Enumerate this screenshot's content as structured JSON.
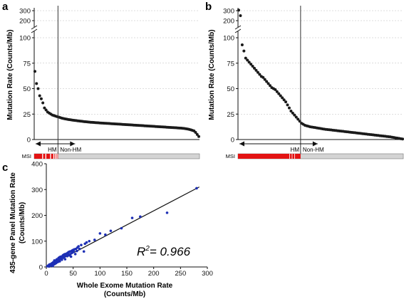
{
  "colors": {
    "dot": "#1a1a1a",
    "scatter_dot": "#1d2fb5",
    "msi_red": "#e31313",
    "msi_grey": "#d4d4d4",
    "grid": "#bbbbbb"
  },
  "panels": {
    "a": {
      "letter": "a"
    },
    "b": {
      "letter": "b"
    },
    "c": {
      "letter": "c"
    }
  },
  "chart_data": [
    {
      "id": "a",
      "type": "scatter",
      "ylabel": "Mutation Rate (Counts/Mb)",
      "y_ticks_lower": [
        "0",
        "25",
        "50",
        "75",
        "100"
      ],
      "y_ticks_upper": [
        "200",
        "300"
      ],
      "ylim_lower": [
        0,
        100
      ],
      "ylim_upper": [
        175,
        325
      ],
      "y_axis_break": true,
      "grid": true,
      "threshold_label_left": "HM",
      "threshold_label_right": "Non-HM",
      "msi_label": "MSI",
      "series": [
        {
          "values": [
            67,
            55,
            50,
            43,
            40,
            36,
            31,
            29,
            27,
            26,
            25,
            24,
            23.5,
            23,
            22.5,
            22,
            21.5,
            21,
            20.6,
            20.3,
            20,
            19.7,
            19.5,
            19.2,
            19,
            18.8,
            18.6,
            18.4,
            18.2,
            18,
            17.8,
            17.6,
            17.5,
            17.3,
            17.1,
            17,
            16.9,
            16.8,
            16.6,
            16.5,
            16.4,
            16.3,
            16.2,
            16.1,
            16,
            15.9,
            15.8,
            15.7,
            15.6,
            15.5,
            15.4,
            15.3,
            15.2,
            15.1,
            15,
            14.9,
            14.8,
            14.7,
            14.6,
            14.5,
            14.4,
            14.3,
            14.2,
            14.1,
            14,
            13.9,
            13.8,
            13.7,
            13.6,
            13.5,
            13.4,
            13.3,
            13.2,
            13.1,
            13,
            12.9,
            12.8,
            12.7,
            12.6,
            12.5,
            12.4,
            12.3,
            12.2,
            12.1,
            12,
            11.9,
            11.8,
            11.7,
            11.6,
            11.5,
            11.4,
            11.3,
            11.2,
            11,
            10.8,
            10.6,
            10.3,
            10,
            9.5,
            9,
            8.5,
            7,
            5,
            3
          ]
        }
      ],
      "hm_count": 15,
      "msi_stripes": [
        0,
        1,
        2,
        3,
        4,
        6,
        8,
        9,
        11
      ]
    },
    {
      "id": "b",
      "type": "scatter",
      "ylabel": "Mutation Rate (Counts/Mb)",
      "y_ticks_lower": [
        "0",
        "25",
        "50",
        "75",
        "100"
      ],
      "y_ticks_upper": [
        "200",
        "300"
      ],
      "ylim_lower": [
        0,
        100
      ],
      "ylim_upper": [
        175,
        325
      ],
      "y_axis_break": true,
      "grid": true,
      "threshold_label_left": "HM",
      "threshold_label_right": "Non-HM",
      "msi_label": "MSI",
      "upper_points": [
        305,
        250
      ],
      "series": [
        {
          "values": [
            93,
            87,
            80,
            78,
            76,
            74,
            72,
            70,
            68,
            66,
            64,
            62,
            61,
            59,
            57,
            55,
            53,
            51,
            50,
            49,
            47,
            45,
            43,
            41,
            39,
            37,
            34,
            31,
            28,
            26,
            24,
            22,
            20,
            18,
            16,
            15,
            14,
            13.5,
            13,
            12.5,
            12.2,
            12,
            11.7,
            11.4,
            11.1,
            10.8,
            10.5,
            10.2,
            10,
            9.8,
            9.6,
            9.4,
            9.2,
            9,
            8.8,
            8.6,
            8.4,
            8.2,
            8,
            7.8,
            7.6,
            7.4,
            7.2,
            7,
            6.8,
            6.6,
            6.4,
            6.2,
            6,
            5.8,
            5.6,
            5.4,
            5.2,
            5,
            4.8,
            4.6,
            4.4,
            4.2,
            4,
            3.8,
            3.6,
            3.4,
            3.2,
            3,
            2.8,
            2.6,
            2.3,
            2,
            1.7,
            1.4,
            1.1,
            0.8,
            0.5
          ]
        }
      ],
      "hm_count": 36,
      "msi_stripes": []
    },
    {
      "id": "c",
      "type": "scatter",
      "xlabel": "Whole Exome Mutation Rate (Counts/Mb)",
      "xlabel_lines": [
        "Whole Exome Mutation Rate",
        "(Counts/Mb)"
      ],
      "ylabel": "435-gene Panel Mutation Rate (Counts/Mb)",
      "ylabel_lines": [
        "435-gene Panel Mutation Rate",
        "(Counts/Mb)"
      ],
      "x_ticks": [
        "0",
        "50",
        "100",
        "150",
        "200",
        "250",
        "300"
      ],
      "y_ticks": [
        "0",
        "100",
        "200",
        "300",
        "400"
      ],
      "xlim": [
        0,
        300
      ],
      "ylim": [
        0,
        400
      ],
      "annotation": "R",
      "annotation_sup": "2",
      "annotation_value": "= 0.966",
      "fit_line": {
        "x0": 0,
        "y0": 0,
        "x1": 285,
        "y1": 310
      },
      "series": [
        {
          "x": [
            2,
            4,
            5,
            6,
            8,
            9,
            10,
            11,
            12,
            13,
            14,
            15,
            15,
            16,
            17,
            18,
            19,
            20,
            20,
            21,
            22,
            23,
            24,
            25,
            25,
            26,
            27,
            28,
            29,
            30,
            30,
            31,
            32,
            33,
            34,
            35,
            35,
            36,
            38,
            39,
            40,
            41,
            42,
            43,
            44,
            45,
            46,
            47,
            48,
            49,
            50,
            51,
            52,
            54,
            55,
            57,
            58,
            60,
            62,
            65,
            70,
            72,
            75,
            80,
            90,
            100,
            110,
            120,
            140,
            160,
            175,
            225,
            280
          ],
          "y": [
            3,
            6,
            2,
            10,
            5,
            12,
            8,
            15,
            4,
            18,
            10,
            20,
            25,
            12,
            22,
            15,
            28,
            18,
            30,
            25,
            20,
            35,
            30,
            38,
            22,
            32,
            40,
            35,
            28,
            42,
            38,
            45,
            36,
            48,
            40,
            50,
            30,
            45,
            52,
            42,
            55,
            48,
            58,
            45,
            60,
            50,
            40,
            62,
            55,
            65,
            58,
            60,
            68,
            50,
            70,
            62,
            75,
            80,
            70,
            85,
            60,
            90,
            95,
            100,
            105,
            130,
            125,
            140,
            150,
            190,
            195,
            210,
            305
          ]
        }
      ]
    }
  ]
}
